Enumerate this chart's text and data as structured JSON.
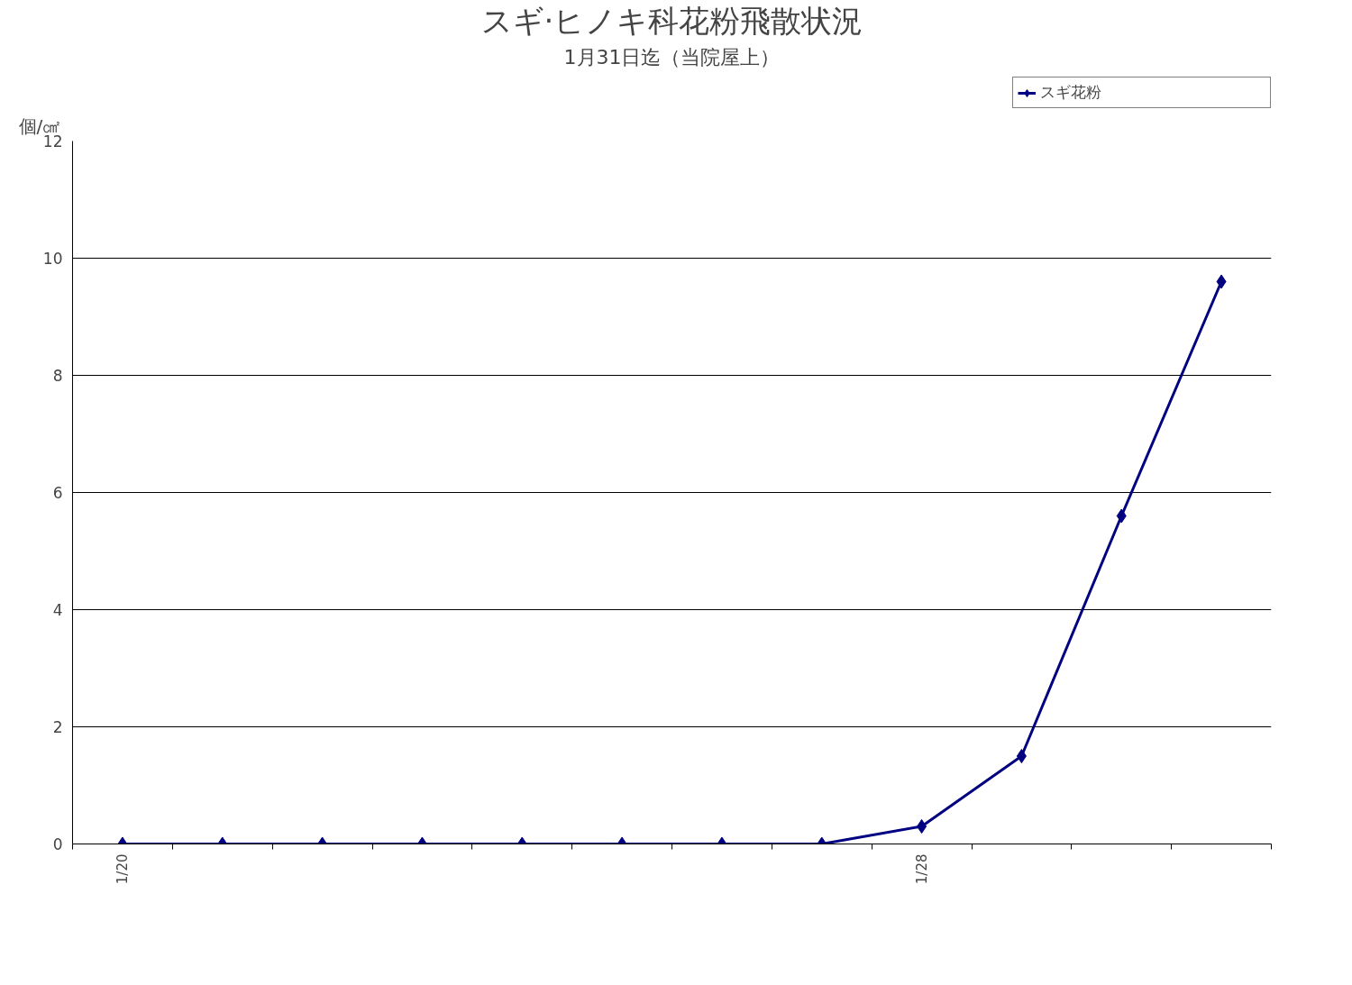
{
  "chart_data": {
    "type": "line",
    "title": "スギ·ヒノキ科花粉飛散状況",
    "subtitle": "1月31日迄（当院屋上）",
    "ylabel": "個/㎠",
    "categories": [
      "1/20",
      null,
      null,
      null,
      null,
      null,
      null,
      null,
      "1/28",
      null,
      null,
      null
    ],
    "series": [
      {
        "name": "スギ花粉",
        "color": "#000080",
        "values": [
          0,
          0,
          0,
          0,
          0,
          0,
          0,
          0,
          0.3,
          1.5,
          5.6,
          9.6
        ]
      }
    ],
    "ylim": [
      0,
      12
    ],
    "yticks": [
      0,
      2,
      4,
      6,
      8,
      10,
      12
    ],
    "grid": "y",
    "legend": "top right",
    "marker": "diamond",
    "line_style": "solid"
  }
}
